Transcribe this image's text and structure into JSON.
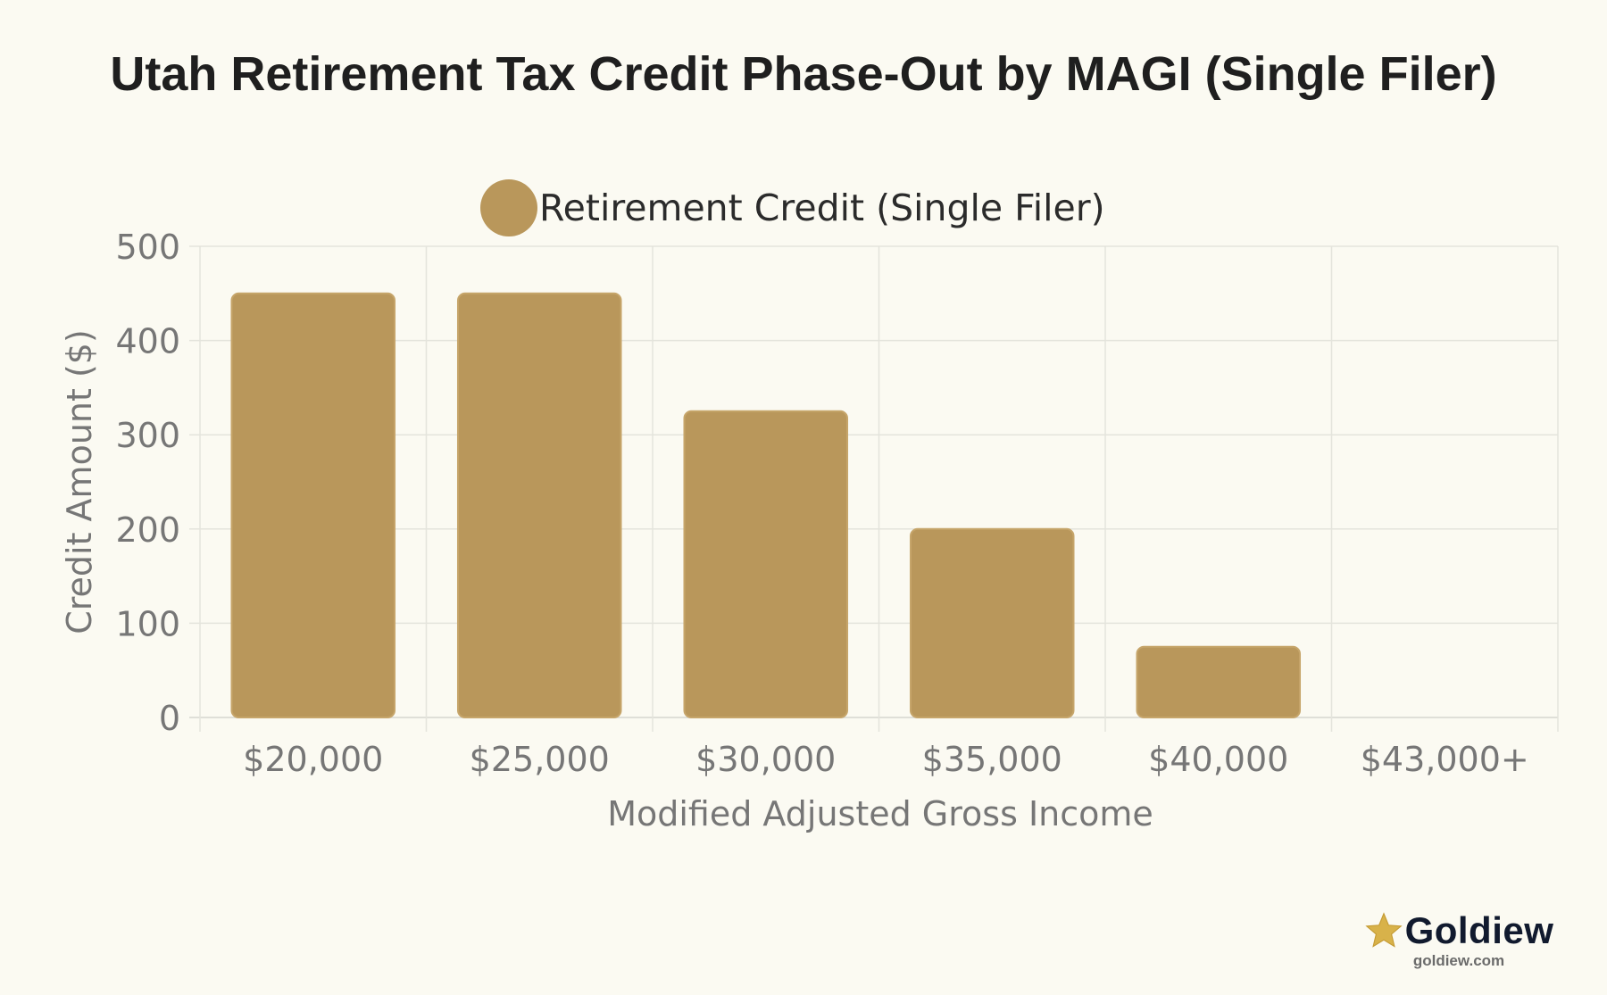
{
  "chart_data": {
    "type": "bar",
    "title": "Utah Retirement Tax Credit Phase-Out by MAGI (Single Filer)",
    "categories": [
      "$20,000",
      "$25,000",
      "$30,000",
      "$35,000",
      "$40,000",
      "$43,000+"
    ],
    "series": [
      {
        "name": "Retirement Credit (Single Filer)",
        "values": [
          450,
          450,
          325,
          200,
          75,
          0
        ],
        "color": "#b9975b"
      }
    ],
    "xlabel": "Modified Adjusted Gross Income",
    "ylabel": "Credit Amount ($)",
    "ylim": [
      0,
      500
    ],
    "yticks": [
      0,
      100,
      200,
      300,
      400,
      500
    ],
    "grid": true,
    "legend": "top-center"
  },
  "brand": {
    "name": "Goldiew",
    "url": "goldiew.com",
    "star_icon": "star-icon",
    "star_color": "#d8b24a"
  }
}
